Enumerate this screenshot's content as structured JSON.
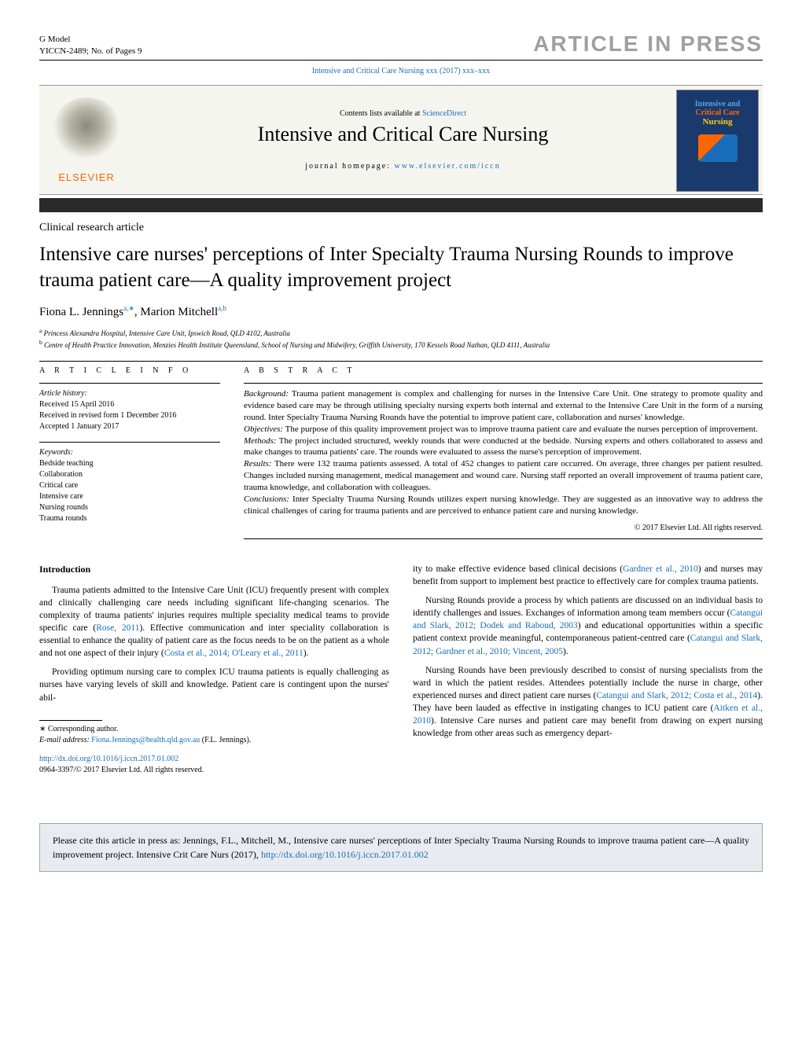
{
  "header": {
    "gmodel": "G Model",
    "docid": "YICCN-2489;   No. of Pages 9",
    "press": "ARTICLE IN PRESS",
    "journal_ref": "Intensive and Critical Care Nursing xxx (2017) xxx–xxx"
  },
  "journal": {
    "elsevier": "ELSEVIER",
    "contents_prefix": "Contents lists available at ",
    "sciencedirect": "ScienceDirect",
    "title": "Intensive and Critical Care Nursing",
    "homepage_prefix": "journal homepage: ",
    "homepage_url": "www.elsevier.com/iccn",
    "cover_line1": "Intensive and",
    "cover_line2": "Critical Care",
    "cover_line3": "Nursing"
  },
  "article": {
    "type": "Clinical research article",
    "title": "Intensive care nurses' perceptions of Inter Specialty Trauma Nursing Rounds to improve trauma patient care—A quality improvement project",
    "authors_html": "Fiona L. Jennings",
    "author1_sup": "a,∗",
    "author2": ", Marion Mitchell",
    "author2_sup": "a,b",
    "affil_a": "Princess Alexandra Hospital, Intensive Care Unit, Ipswich Road, QLD 4102, Australia",
    "affil_b": "Centre of Health Practice Innovation, Menzies Health Institute Queensland, School of Nursing and Midwifery, Griffith University, 170 Kessels Road Nathan, QLD 4111, Australia"
  },
  "info": {
    "heading": "a r t i c l e   i n f o",
    "history_label": "Article history:",
    "received": "Received 15 April 2016",
    "revised": "Received in revised form 1 December 2016",
    "accepted": "Accepted 1 January 2017",
    "keywords_label": "Keywords:",
    "keywords": [
      "Bedside teaching",
      "Collaboration",
      "Critical care",
      "Intensive care",
      "Nursing rounds",
      "Trauma rounds"
    ]
  },
  "abstract": {
    "heading": "a b s t r a c t",
    "background_label": "Background:",
    "background": " Trauma patient management is complex and challenging for nurses in the Intensive Care Unit. One strategy to promote quality and evidence based care may be through utilising specialty nursing experts both internal and external to the Intensive Care Unit in the form of a nursing round. Inter Specialty Trauma Nursing Rounds have the potential to improve patient care, collaboration and nurses' knowledge.",
    "objectives_label": "Objectives:",
    "objectives": " The purpose of this quality improvement project was to improve trauma patient care and evaluate the nurses perception of improvement.",
    "methods_label": "Methods:",
    "methods": " The project included structured, weekly rounds that were conducted at the bedside. Nursing experts and others collaborated to assess and make changes to trauma patients' care. The rounds were evaluated to assess the nurse's perception of improvement.",
    "results_label": "Results:",
    "results": " There were 132 trauma patients assessed. A total of 452 changes to patient care occurred. On average, three changes per patient resulted. Changes included nursing management, medical management and wound care. Nursing staff reported an overall improvement of trauma patient care, trauma knowledge, and collaboration with colleagues.",
    "conclusions_label": "Conclusions:",
    "conclusions": " Inter Specialty Trauma Nursing Rounds utilizes expert nursing knowledge. They are suggested as an innovative way to address the clinical challenges of caring for trauma patients and are perceived to enhance patient care and nursing knowledge.",
    "copyright": "© 2017 Elsevier Ltd. All rights reserved."
  },
  "body": {
    "intro_heading": "Introduction",
    "p1a": "Trauma patients admitted to the Intensive Care Unit (ICU) frequently present with complex and clinically challenging care needs including significant life-changing scenarios. The complexity of trauma patients' injuries requires multiple speciality medical teams to provide specific care (",
    "p1_ref1": "Rose, 2011",
    "p1b": "). Effective communication and inter speciality collaboration is essential to enhance the quality of patient care as the focus needs to be on the patient as a whole and not one aspect of their injury (",
    "p1_ref2": "Costa et al., 2014; O'Leary et al., 2011",
    "p1c": ").",
    "p2": "Providing optimum nursing care to complex ICU trauma patients is equally challenging as nurses have varying levels of skill and knowledge. Patient care is contingent upon the nurses' abil-",
    "p3a": "ity to make effective evidence based clinical decisions (",
    "p3_ref1": "Gardner et al., 2010",
    "p3b": ") and nurses may benefit from support to implement best practice to effectively care for complex trauma patients.",
    "p4a": "Nursing Rounds provide a process by which patients are discussed on an individual basis to identify challenges and issues. Exchanges of information among team members occur (",
    "p4_ref1": "Catangui and Slark, 2012; Dodek and Raboud, 2003",
    "p4b": ") and educational opportunities within a specific patient context provide meaningful, contemporaneous patient-centred care (",
    "p4_ref2": "Catangui and Slark, 2012; Gardner et al., 2010; Vincent, 2005",
    "p4c": ").",
    "p5a": "Nursing Rounds have been previously described to consist of nursing specialists from the ward in which the patient resides. Attendees potentially include the nurse in charge, other experienced nurses and direct patient care nurses (",
    "p5_ref1": "Catangui and Slark, 2012; Costa et al., 2014",
    "p5b": "). They have been lauded as effective in instigating changes to ICU patient care (",
    "p5_ref2": "Aitken et al., 2010",
    "p5c": "). Intensive Care nurses and patient care may benefit from drawing on expert nursing knowledge from other areas such as emergency depart-"
  },
  "footnote": {
    "corresponding": "∗ Corresponding author.",
    "email_label": "E-mail address: ",
    "email": "Fiona.Jennings@health.qld.gov.au",
    "email_suffix": " (F.L. Jennings)."
  },
  "doi": {
    "url": "http://dx.doi.org/10.1016/j.iccn.2017.01.002",
    "issn": "0964-3397/© 2017 Elsevier Ltd. All rights reserved."
  },
  "citebox": {
    "text_a": "Please cite this article in press as: Jennings, F.L., Mitchell, M., Intensive care nurses' perceptions of Inter Specialty Trauma Nursing Rounds to improve trauma patient care—A quality improvement project. Intensive Crit Care Nurs (2017), ",
    "url": "http://dx.doi.org/10.1016/j.iccn.2017.01.002"
  }
}
